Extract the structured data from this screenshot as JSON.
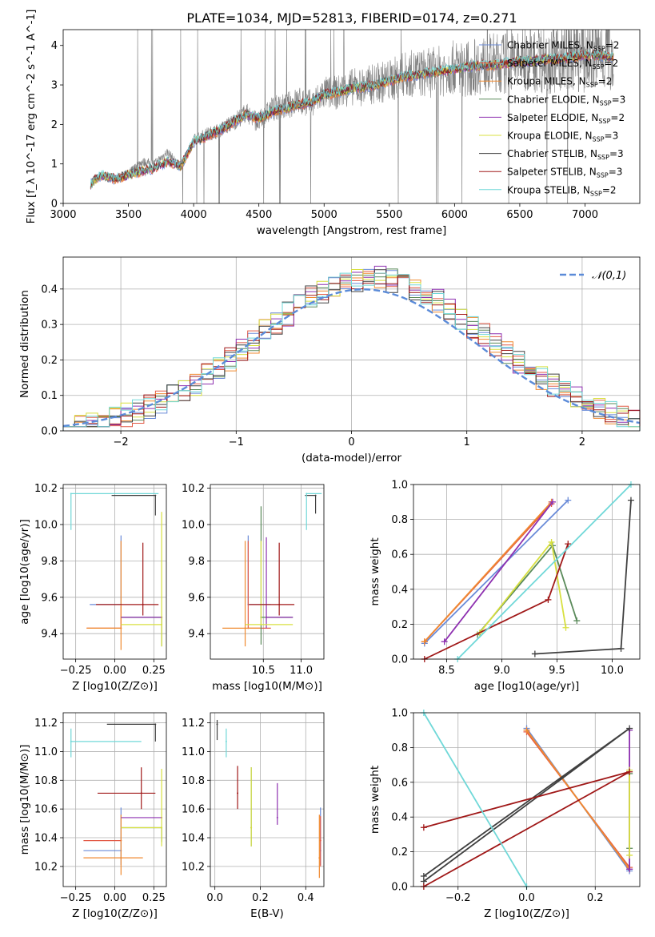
{
  "figure_title": "PLATE=1034, MJD=52813, FIBERID=0174, z=0.271",
  "chart_data": [
    {
      "id": "spectrum",
      "type": "line",
      "title": "PLATE=1034, MJD=52813, FIBERID=0174, z=0.271",
      "xlabel": "wavelength [Angstrom, rest frame]",
      "ylabel": "Flux [f_λ 10^-17 erg cm^-2 s^-1 A^-1]",
      "xlim": [
        3000,
        7420
      ],
      "ylim": [
        0,
        4.4
      ],
      "xticks": [
        3000,
        3500,
        4000,
        4500,
        5000,
        5500,
        6000,
        6500,
        7000
      ],
      "yticks": [
        0,
        1,
        2,
        3,
        4
      ],
      "grid": false,
      "legend_position": "top-right",
      "observed": {
        "color": "#808080",
        "x": [
          3210,
          3300,
          3400,
          3500,
          3600,
          3700,
          3800,
          3900,
          4000,
          4100,
          4200,
          4300,
          4400,
          4500,
          4600,
          4700,
          4800,
          4900,
          5000,
          5100,
          5200,
          5300,
          5400,
          5500,
          5600,
          5700,
          5800,
          5900,
          6000,
          6100,
          6200,
          6300,
          6400,
          6500,
          6600,
          6700,
          6800,
          6900,
          7000,
          7100,
          7220
        ],
        "y": [
          0.55,
          0.7,
          0.6,
          0.75,
          1.05,
          1.0,
          1.3,
          0.9,
          1.6,
          1.75,
          1.85,
          2.05,
          2.3,
          2.05,
          2.4,
          2.45,
          2.6,
          2.5,
          2.8,
          2.8,
          2.95,
          2.95,
          3.05,
          3.1,
          3.25,
          3.3,
          3.3,
          3.35,
          3.45,
          3.4,
          3.5,
          3.55,
          3.55,
          3.6,
          3.65,
          3.65,
          3.7,
          3.75,
          3.75,
          3.8,
          3.8
        ]
      },
      "series": [
        {
          "name": "Chabrier MILES, N_SSP=2",
          "color": "#6a8bd8"
        },
        {
          "name": "Salpeter MILES, N_SSP=2",
          "color": "#e25a46"
        },
        {
          "name": "Kroupa MILES, N_SSP=2",
          "color": "#f08a30"
        },
        {
          "name": "Chabrier ELODIE, N_SSP=3",
          "color": "#5a8a5a"
        },
        {
          "name": "Salpeter ELODIE, N_SSP=2",
          "color": "#8e30b0"
        },
        {
          "name": "Kroupa ELODIE, N_SSP=3",
          "color": "#d8e040"
        },
        {
          "name": "Chabrier STELIB, N_SSP=3",
          "color": "#404040"
        },
        {
          "name": "Salpeter STELIB, N_SSP=3",
          "color": "#a01818"
        },
        {
          "name": "Kroupa STELIB, N_SSP=2",
          "color": "#70d8d8"
        }
      ],
      "model_continuum": {
        "x": [
          3210,
          3300,
          3400,
          3500,
          3600,
          3700,
          3800,
          3900,
          4000,
          4100,
          4200,
          4300,
          4400,
          4500,
          4600,
          4700,
          4800,
          4900,
          5000,
          5100,
          5200,
          5300,
          5400,
          5500,
          5600,
          5700,
          5800,
          5900,
          6000,
          6100,
          6200,
          6300,
          6400,
          6500,
          6600,
          6700,
          6800,
          6900,
          7000,
          7100,
          7220
        ],
        "y": [
          0.5,
          0.72,
          0.62,
          0.72,
          0.82,
          0.9,
          1.05,
          0.95,
          1.55,
          1.7,
          1.85,
          2.05,
          2.25,
          2.15,
          2.3,
          2.4,
          2.5,
          2.55,
          2.75,
          2.8,
          2.9,
          2.95,
          3.0,
          3.1,
          3.2,
          3.25,
          3.3,
          3.35,
          3.4,
          3.45,
          3.5,
          3.5,
          3.55,
          3.6,
          3.6,
          3.65,
          3.65,
          3.7,
          3.75,
          3.75,
          3.7
        ]
      }
    },
    {
      "id": "residuals",
      "type": "histogram",
      "xlabel": "(data-model)/error",
      "ylabel": "Normed distribution",
      "xlim": [
        -2.5,
        2.5
      ],
      "ylim": [
        0,
        0.49
      ],
      "xticks": [
        -2,
        -1,
        0,
        1,
        2
      ],
      "yticks": [
        0.0,
        0.1,
        0.2,
        0.3,
        0.4
      ],
      "grid": true,
      "legend": {
        "label": "𝒩(0,1)",
        "color": "#5b8bd8",
        "position": "top-right"
      },
      "bin_edges_start": -2.5,
      "bin_width": 0.1,
      "curve": {
        "mu": 0.1,
        "sigma": 1.0
      }
    },
    {
      "id": "age_vs_Z",
      "type": "errorbar",
      "xlabel": "Z [log10(Z/Z⊙)]",
      "ylabel": "age [log10(age/yr)]",
      "xlim": [
        -0.33,
        0.33
      ],
      "ylim": [
        9.26,
        10.22
      ],
      "xticks": [
        -0.25,
        0.0,
        0.25
      ],
      "yticks": [
        9.4,
        9.6,
        9.8,
        10.0,
        10.2
      ],
      "grid": true,
      "points": [
        {
          "series": "Chabrier MILES",
          "x": 0.04,
          "y": 9.56,
          "xerr": [
            0.2,
            0.0
          ],
          "yerr": [
            0.0,
            0.38
          ]
        },
        {
          "series": "Salpeter MILES",
          "x": 0.04,
          "y": 9.43,
          "xerr": [
            0.22,
            0.0
          ],
          "yerr": [
            0.0,
            0.12
          ]
        },
        {
          "series": "Kroupa MILES",
          "x": 0.04,
          "y": 9.43,
          "xerr": [
            0.22,
            0.0
          ],
          "yerr": [
            0.12,
            0.48
          ]
        },
        {
          "series": "Chabrier ELODIE",
          "x": 0.3,
          "y": 9.49,
          "xerr": [
            0.26,
            0.0
          ],
          "yerr": [
            0.16,
            0.0
          ]
        },
        {
          "series": "Salpeter ELODIE",
          "x": 0.3,
          "y": 9.49,
          "xerr": [
            0.26,
            0.0
          ],
          "yerr": [
            0.0,
            0.0
          ]
        },
        {
          "series": "Kroupa ELODIE",
          "x": 0.3,
          "y": 9.45,
          "xerr": [
            0.26,
            0.0
          ],
          "yerr": [
            0.12,
            0.62
          ]
        },
        {
          "series": "Chabrier STELIB",
          "x": 0.26,
          "y": 10.16,
          "xerr": [
            0.28,
            0.0
          ],
          "yerr": [
            0.11,
            0.0
          ]
        },
        {
          "series": "Salpeter STELIB",
          "x": 0.18,
          "y": 9.56,
          "xerr": [
            0.3,
            0.1
          ],
          "yerr": [
            0.06,
            0.34
          ]
        },
        {
          "series": "Kroupa STELIB",
          "x": -0.28,
          "y": 10.17,
          "xerr": [
            0.0,
            0.56
          ],
          "yerr": [
            0.2,
            0.0
          ]
        }
      ]
    },
    {
      "id": "age_vs_mass",
      "type": "errorbar",
      "xlabel": "mass [log10(M/M⊙)]",
      "xlim": [
        9.8,
        11.3
      ],
      "ylim": [
        9.26,
        10.22
      ],
      "xticks": [
        10.5,
        11.0
      ],
      "yticks": [
        9.4,
        9.6,
        9.8,
        10.0,
        10.2
      ],
      "grid": true,
      "points": [
        {
          "series": "Chabrier MILES",
          "x": 10.3,
          "y": 9.56,
          "xerr": [
            0.0,
            0.3
          ],
          "yerr": [
            0.0,
            0.38
          ]
        },
        {
          "series": "Salpeter MILES",
          "x": 10.3,
          "y": 9.43,
          "xerr": [
            0.0,
            0.3
          ],
          "yerr": [
            0.0,
            0.48
          ]
        },
        {
          "series": "Kroupa MILES",
          "x": 10.26,
          "y": 9.43,
          "xerr": [
            0.3,
            0.2
          ],
          "yerr": [
            0.1,
            0.48
          ]
        },
        {
          "series": "Chabrier ELODIE",
          "x": 10.47,
          "y": 9.49,
          "xerr": [
            0.0,
            0.42
          ],
          "yerr": [
            0.15,
            0.61
          ]
        },
        {
          "series": "Salpeter ELODIE",
          "x": 10.54,
          "y": 9.49,
          "xerr": [
            0.0,
            0.35
          ],
          "yerr": [
            0.06,
            0.44
          ]
        },
        {
          "series": "Kroupa ELODIE",
          "x": 10.47,
          "y": 9.45,
          "xerr": [
            0.21,
            0.42
          ],
          "yerr": [
            0.0,
            0.46
          ]
        },
        {
          "series": "Chabrier STELIB",
          "x": 11.19,
          "y": 10.16,
          "xerr": [
            0.14,
            0.0
          ],
          "yerr": [
            0.1,
            0.0
          ]
        },
        {
          "series": "Salpeter STELIB",
          "x": 10.71,
          "y": 9.56,
          "xerr": [
            0.4,
            0.2
          ],
          "yerr": [
            0.06,
            0.34
          ]
        },
        {
          "series": "Kroupa STELIB",
          "x": 11.07,
          "y": 10.17,
          "xerr": [
            0.0,
            0.2
          ],
          "yerr": [
            0.2,
            0.0
          ]
        }
      ]
    },
    {
      "id": "weight_vs_age",
      "type": "line",
      "xlabel": "age [log10(age/yr)]",
      "ylabel": "mass weight",
      "xlim": [
        8.2,
        10.25
      ],
      "ylim": [
        0.0,
        1.0
      ],
      "xticks": [
        8.5,
        9.0,
        9.5,
        10.0
      ],
      "yticks": [
        0.0,
        0.2,
        0.4,
        0.6,
        0.8,
        1.0
      ],
      "grid": true,
      "series": [
        {
          "series": "Chabrier MILES",
          "x": [
            8.3,
            9.6
          ],
          "y": [
            0.09,
            0.91
          ]
        },
        {
          "series": "Salpeter MILES",
          "x": [
            8.3,
            9.45
          ],
          "y": [
            0.1,
            0.89
          ]
        },
        {
          "series": "Kroupa MILES",
          "x": [
            8.3,
            9.45
          ],
          "y": [
            0.1,
            0.9
          ]
        },
        {
          "series": "Chabrier ELODIE",
          "x": [
            8.78,
            9.46,
            9.68
          ],
          "y": [
            0.14,
            0.65,
            0.22
          ]
        },
        {
          "series": "Salpeter ELODIE",
          "x": [
            8.48,
            9.46
          ],
          "y": [
            0.1,
            0.9
          ]
        },
        {
          "series": "Kroupa ELODIE",
          "x": [
            8.8,
            9.45,
            9.58
          ],
          "y": [
            0.15,
            0.67,
            0.18
          ]
        },
        {
          "series": "Chabrier STELIB",
          "x": [
            9.3,
            10.08,
            10.17
          ],
          "y": [
            0.03,
            0.06,
            0.91
          ]
        },
        {
          "series": "Salpeter STELIB",
          "x": [
            8.3,
            9.42,
            9.6
          ],
          "y": [
            0.0,
            0.34,
            0.66
          ]
        },
        {
          "series": "Kroupa STELIB",
          "x": [
            8.6,
            10.17
          ],
          "y": [
            0.0,
            1.0
          ]
        }
      ]
    },
    {
      "id": "mass_vs_Z",
      "type": "errorbar",
      "xlabel": "Z [log10(Z/Z⊙)]",
      "ylabel": "mass [log10(M/M⊙)]",
      "xlim": [
        -0.33,
        0.33
      ],
      "ylim": [
        10.06,
        11.27
      ],
      "xticks": [
        -0.25,
        0.0,
        0.25
      ],
      "yticks": [
        10.2,
        10.4,
        10.6,
        10.8,
        11.0,
        11.2
      ],
      "grid": true,
      "points": [
        {
          "series": "Chabrier MILES",
          "x": 0.04,
          "y": 10.31,
          "xerr": [
            0.24,
            0.0
          ],
          "yerr": [
            0.1,
            0.3
          ]
        },
        {
          "series": "Salpeter MILES",
          "x": 0.04,
          "y": 10.38,
          "xerr": [
            0.24,
            0.0
          ],
          "yerr": [
            0.0,
            0.0
          ]
        },
        {
          "series": "Kroupa MILES",
          "x": 0.04,
          "y": 10.26,
          "xerr": [
            0.24,
            0.14
          ],
          "yerr": [
            0.12,
            0.3
          ]
        },
        {
          "series": "Chabrier ELODIE",
          "x": 0.3,
          "y": 10.47,
          "xerr": [
            0.26,
            0.0
          ],
          "yerr": [
            0.1,
            0.0
          ]
        },
        {
          "series": "Salpeter ELODIE",
          "x": 0.3,
          "y": 10.54,
          "xerr": [
            0.26,
            0.0
          ],
          "yerr": [
            0.0,
            0.0
          ]
        },
        {
          "series": "Kroupa ELODIE",
          "x": 0.3,
          "y": 10.47,
          "xerr": [
            0.26,
            0.0
          ],
          "yerr": [
            0.13,
            0.41
          ]
        },
        {
          "series": "Chabrier STELIB",
          "x": 0.26,
          "y": 11.19,
          "xerr": [
            0.31,
            0.0
          ],
          "yerr": [
            0.12,
            0.0
          ]
        },
        {
          "series": "Salpeter STELIB",
          "x": 0.17,
          "y": 10.71,
          "xerr": [
            0.28,
            0.09
          ],
          "yerr": [
            0.11,
            0.18
          ]
        },
        {
          "series": "Kroupa STELIB",
          "x": -0.28,
          "y": 11.07,
          "xerr": [
            0.0,
            0.45
          ],
          "yerr": [
            0.11,
            0.09
          ]
        }
      ]
    },
    {
      "id": "mass_vs_ebv",
      "type": "errorbar",
      "xlabel": "E(B-V)",
      "xlim": [
        -0.02,
        0.48
      ],
      "ylim": [
        10.06,
        11.27
      ],
      "xticks": [
        0.0,
        0.2,
        0.4
      ],
      "yticks": [
        10.2,
        10.4,
        10.6,
        10.8,
        11.0,
        11.2
      ],
      "grid": true,
      "points": [
        {
          "series": "Chabrier MILES",
          "x": 0.465,
          "y": 10.31,
          "xerr": [
            0,
            0
          ],
          "yerr": [
            0.1,
            0.3
          ]
        },
        {
          "series": "Salpeter MILES",
          "x": 0.465,
          "y": 10.38,
          "xerr": [
            0,
            0
          ],
          "yerr": [
            0.18,
            0.17
          ]
        },
        {
          "series": "Kroupa MILES",
          "x": 0.46,
          "y": 10.26,
          "xerr": [
            0,
            0
          ],
          "yerr": [
            0.14,
            0.3
          ]
        },
        {
          "series": "Chabrier ELODIE",
          "x": 0.16,
          "y": 10.47,
          "xerr": [
            0,
            0
          ],
          "yerr": [
            0.13,
            0.42
          ]
        },
        {
          "series": "Salpeter ELODIE",
          "x": 0.275,
          "y": 10.54,
          "xerr": [
            0,
            0
          ],
          "yerr": [
            0.05,
            0.24
          ]
        },
        {
          "series": "Kroupa ELODIE",
          "x": 0.16,
          "y": 10.47,
          "xerr": [
            0,
            0
          ],
          "yerr": [
            0.13,
            0.42
          ]
        },
        {
          "series": "Chabrier STELIB",
          "x": 0.01,
          "y": 11.19,
          "xerr": [
            0,
            0
          ],
          "yerr": [
            0.11,
            0.03
          ]
        },
        {
          "series": "Salpeter STELIB",
          "x": 0.1,
          "y": 10.71,
          "xerr": [
            0,
            0
          ],
          "yerr": [
            0.11,
            0.19
          ]
        },
        {
          "series": "Kroupa STELIB",
          "x": 0.05,
          "y": 11.07,
          "xerr": [
            0,
            0
          ],
          "yerr": [
            0.11,
            0.09
          ]
        }
      ]
    },
    {
      "id": "weight_vs_Z",
      "type": "line",
      "xlabel": "Z [log10(Z/Z⊙)]",
      "ylabel": "mass weight",
      "xlim": [
        -0.33,
        0.33
      ],
      "ylim": [
        0.0,
        1.0
      ],
      "xticks": [
        -0.2,
        0.0,
        0.2
      ],
      "yticks": [
        0.0,
        0.2,
        0.4,
        0.6,
        0.8,
        1.0
      ],
      "grid": true,
      "series": [
        {
          "series": "Chabrier MILES",
          "x": [
            0.0,
            0.3
          ],
          "y": [
            0.91,
            0.09
          ]
        },
        {
          "series": "Salpeter MILES",
          "x": [
            0.0,
            0.3
          ],
          "y": [
            0.89,
            0.11
          ]
        },
        {
          "series": "Kroupa MILES",
          "x": [
            0.0,
            0.3
          ],
          "y": [
            0.9,
            0.1
          ]
        },
        {
          "series": "Chabrier ELODIE",
          "x": [
            0.3,
            0.3
          ],
          "y": [
            0.22,
            0.65
          ]
        },
        {
          "series": "Salpeter ELODIE",
          "x": [
            0.3,
            0.3
          ],
          "y": [
            0.1,
            0.9
          ]
        },
        {
          "series": "Kroupa ELODIE",
          "x": [
            0.3,
            0.3
          ],
          "y": [
            0.18,
            0.67
          ]
        },
        {
          "series": "Chabrier STELIB",
          "x": [
            -0.3,
            0.3,
            -0.3
          ],
          "y": [
            0.03,
            0.91,
            0.06
          ]
        },
        {
          "series": "Salpeter STELIB",
          "x": [
            -0.3,
            0.3,
            -0.3
          ],
          "y": [
            0.0,
            0.66,
            0.34
          ]
        },
        {
          "series": "Kroupa STELIB",
          "x": [
            -0.3,
            0.0
          ],
          "y": [
            1.0,
            0.0
          ]
        }
      ]
    }
  ]
}
